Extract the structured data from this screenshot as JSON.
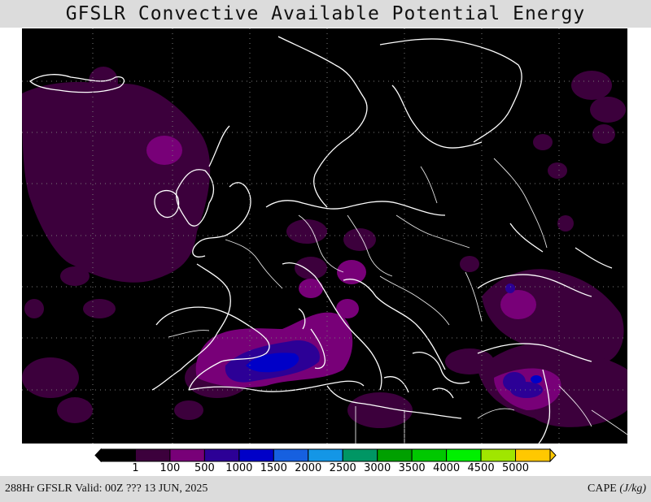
{
  "title": "GFSLR Convective Available Potential Energy",
  "footer": {
    "valid_text": "288Hr GFSLR Valid: 00Z ??? 13 JUN, 2025",
    "field_label": "CAPE",
    "unit": "(J/kg)"
  },
  "colorbar": {
    "colors": [
      "#000000",
      "#3c003c",
      "#780078",
      "#2c0096",
      "#0000c8",
      "#1660e0",
      "#1496e6",
      "#009664",
      "#00a000",
      "#00c800",
      "#00f000",
      "#a0e600",
      "#ffc800"
    ],
    "tick_labels": [
      "1",
      "100",
      "500",
      "1000",
      "1500",
      "2000",
      "2500",
      "3000",
      "3500",
      "4000",
      "4500",
      "5000"
    ]
  },
  "map": {
    "background": "#000000",
    "coastline_color": "#ffffff",
    "cape_levels": {
      "low": "#3c003c",
      "mid": "#780078",
      "high": "#2c0096",
      "peak": "#0000c8"
    }
  }
}
